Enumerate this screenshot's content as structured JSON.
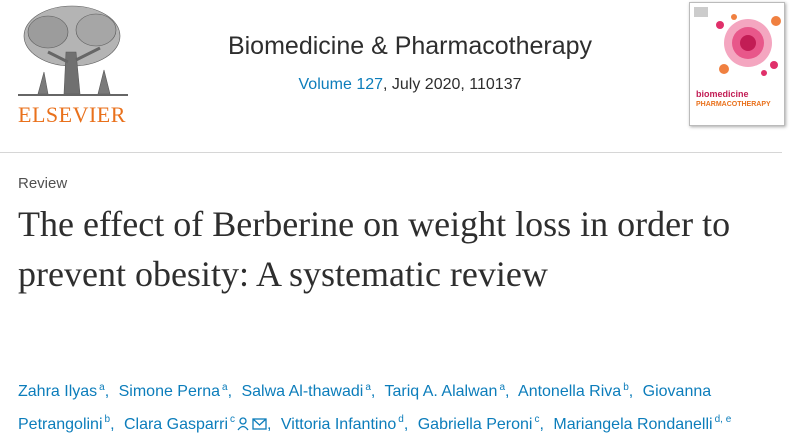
{
  "header": {
    "publisher": "ELSEVIER",
    "journal": "Biomedicine & Pharmacotherapy",
    "volume": "Volume 127",
    "issue_info": ", July 2020, 110137",
    "cover_title_1": "biomedicine",
    "cover_title_2": "PHARMACOTHERAPY"
  },
  "article": {
    "type": "Review",
    "title": "The effect of Berberine on weight loss in order to prevent obesity: A systematic review",
    "authors": [
      {
        "name": "Zahra Ilyas",
        "affil": "a"
      },
      {
        "name": "Simone Perna",
        "affil": "a"
      },
      {
        "name": "Salwa Al-thawadi",
        "affil": "a"
      },
      {
        "name": "Tariq A. Alalwan",
        "affil": "a"
      },
      {
        "name": "Antonella Riva",
        "affil": "b"
      },
      {
        "name": "Giovanna Petrangolini",
        "affil": "b"
      },
      {
        "name": "Clara Gasparri",
        "affil": "c"
      },
      {
        "name": "Vittoria Infantino",
        "affil": "d"
      },
      {
        "name": "Gabriella Peroni",
        "affil": "c"
      },
      {
        "name": "Mariangela Rondanelli",
        "affil": "d, e"
      }
    ]
  }
}
